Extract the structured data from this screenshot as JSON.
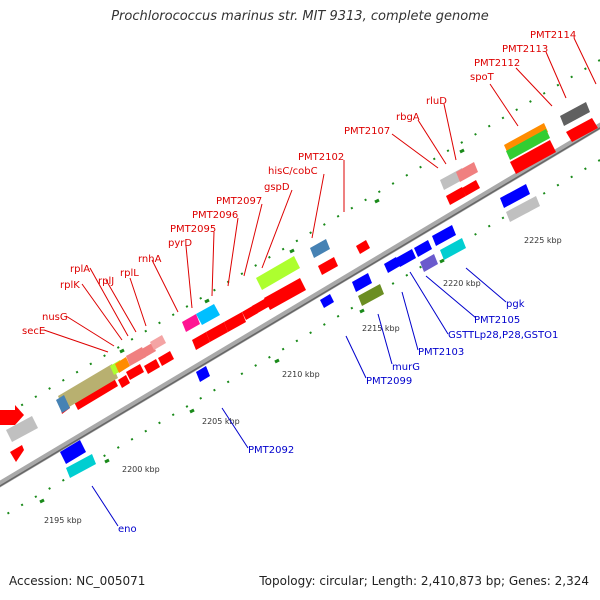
{
  "title": "Prochlorococcus marinus str. MIT 9313, complete genome",
  "footer": {
    "accession": "Accession: NC_005071",
    "stats": "Topology: circular; Length: 2,410,873 bp; Genes: 2,324"
  },
  "colors": {
    "backbone": "#a9a9a9",
    "forward_label": "#dd0000",
    "reverse_label": "#0000cc",
    "tick": "#1a8a1a"
  },
  "scale_labels": [
    "2195 kbp",
    "2200 kbp",
    "2205 kbp",
    "2210 kbp",
    "2215 kbp",
    "2220 kbp",
    "2225 kbp"
  ],
  "forward_labels": [
    "secE",
    "nusG",
    "rplK",
    "rplA",
    "rplJ",
    "rplL",
    "rnhA",
    "pyrD",
    "PMT2095",
    "PMT2096",
    "PMT2097",
    "gspD",
    "hisC/cobC",
    "PMT2102",
    "PMT2107",
    "rbgA",
    "rluD",
    "spoT",
    "PMT2112",
    "PMT2113",
    "PMT2114"
  ],
  "reverse_labels": [
    "eno",
    "PMT2092",
    "PMT2099",
    "murG",
    "PMT2103",
    "GSTTLp28,P28,GSTO1",
    "PMT2105",
    "pgk"
  ]
}
